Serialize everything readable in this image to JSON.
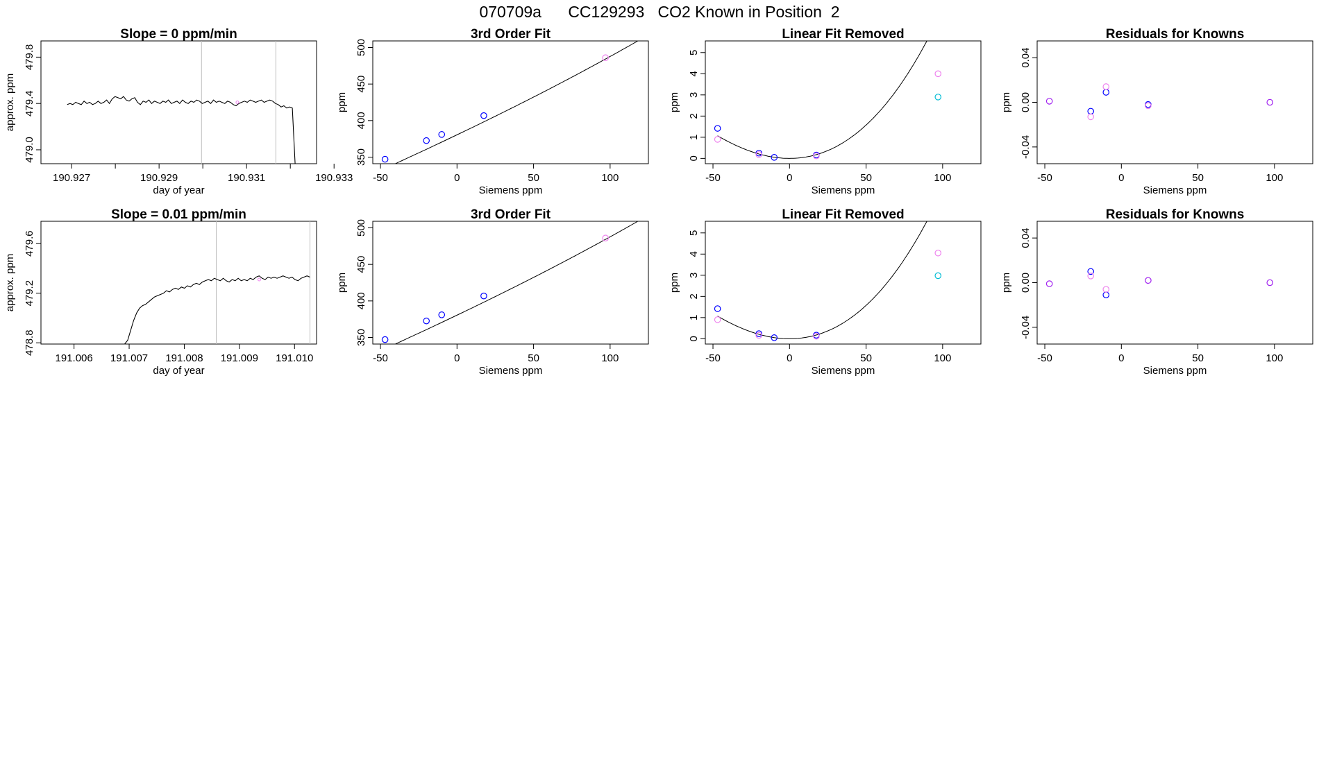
{
  "page": {
    "title": "070709a      CC129293   CO2 Known in Position  2"
  },
  "colors": {
    "line": "#000000",
    "frame": "#000000",
    "vline": "#bebebe",
    "blue": "#0000ff",
    "magenta": "#ee82ee",
    "cyan": "#00bcd4",
    "purple": "#a020f0"
  },
  "chart_data": [
    {
      "type": "line",
      "row": 1,
      "col": 1,
      "title": "Slope =  0  ppm/min",
      "xlabel": "day of year",
      "ylabel": "approx. ppm",
      "xlim": [
        190.9263,
        190.9326
      ],
      "ylim": [
        478.88,
        479.94
      ],
      "xticks": [
        190.927,
        190.928,
        190.929,
        190.93,
        190.931,
        190.932,
        190.933
      ],
      "xtick_labels": [
        "190.927",
        "",
        "190.929",
        "",
        "190.931",
        "",
        "190.933"
      ],
      "yticks": [
        479.0,
        479.4,
        479.8
      ],
      "ytick_labels": [
        "479.0",
        "479.4",
        "479.8"
      ],
      "vlines": [
        190.92997,
        190.93167
      ],
      "series": [
        {
          "name": "trace",
          "x_start": 190.9269,
          "x_end": 190.93211,
          "values": [
            479.39,
            479.4,
            479.39,
            479.41,
            479.4,
            479.39,
            479.42,
            479.4,
            479.41,
            479.39,
            479.4,
            479.42,
            479.4,
            479.41,
            479.43,
            479.4,
            479.44,
            479.46,
            479.45,
            479.44,
            479.46,
            479.43,
            479.42,
            479.44,
            479.45,
            479.41,
            479.39,
            479.42,
            479.41,
            479.43,
            479.4,
            479.42,
            479.41,
            479.4,
            479.42,
            479.41,
            479.43,
            479.4,
            479.41,
            479.42,
            479.4,
            479.43,
            479.41,
            479.4,
            479.42,
            479.41,
            479.43,
            479.42,
            479.4,
            479.41,
            479.42,
            479.4,
            479.43,
            479.41,
            479.42,
            479.41,
            479.4,
            479.42,
            479.41,
            479.39,
            479.38,
            479.4,
            479.41,
            479.42,
            479.41,
            479.43,
            479.42,
            479.41,
            479.42,
            479.43,
            479.41,
            479.42,
            479.43,
            479.42,
            479.4,
            479.39,
            479.37,
            479.38,
            479.36,
            479.37,
            479.36,
            478.88
          ]
        }
      ],
      "markers": [
        {
          "name": "light-marker",
          "x": 190.93079,
          "y": 479.41,
          "color": "magenta"
        }
      ]
    },
    {
      "type": "scatter",
      "row": 1,
      "col": 2,
      "title": "3rd Order Fit",
      "xlabel": "Siemens ppm",
      "ylabel": "ppm",
      "xlim": [
        -55,
        125
      ],
      "ylim": [
        341,
        509
      ],
      "xticks": [
        -50,
        0,
        50,
        100
      ],
      "xtick_labels": [
        "-50",
        "0",
        "50",
        "100"
      ],
      "yticks": [
        350,
        400,
        450,
        500
      ],
      "yticks_labels_note": "labels rotated",
      "ytick_labels": [
        "350",
        "400",
        "450",
        "500"
      ],
      "curve": {
        "a": 380.55,
        "b": 1.001,
        "c": 0.000555,
        "d": 1.5e-06,
        "x_from": -53.5,
        "x_to": 118
      },
      "points": [
        {
          "x": -47,
          "y": 347.1,
          "color": "blue"
        },
        {
          "x": -20,
          "y": 372.6,
          "color": "blue"
        },
        {
          "x": -10,
          "y": 381.0,
          "color": "blue"
        },
        {
          "x": 17.5,
          "y": 406.8,
          "color": "blue"
        },
        {
          "x": 97,
          "y": 486.0,
          "color": "magenta"
        }
      ]
    },
    {
      "type": "scatter",
      "row": 1,
      "col": 3,
      "title": "Linear Fit Removed",
      "xlabel": "Siemens ppm",
      "ylabel": "ppm",
      "xlim": [
        -55,
        125
      ],
      "ylim": [
        -0.25,
        5.55
      ],
      "xticks": [
        -50,
        0,
        50,
        100
      ],
      "xtick_labels": [
        "-50",
        "0",
        "50",
        "100"
      ],
      "yticks": [
        0,
        1,
        2,
        3,
        4,
        5
      ],
      "ytick_labels": [
        "0",
        "1",
        "2",
        "3",
        "4",
        "5"
      ],
      "curve": {
        "a": 0.0,
        "b": 0.0,
        "c": 0.000555,
        "d": 1.5e-06,
        "x_from": -47,
        "x_to": 118
      },
      "points": [
        {
          "x": -47,
          "y": 1.42,
          "color": "blue"
        },
        {
          "x": -47,
          "y": 0.9,
          "color": "magenta"
        },
        {
          "x": -20,
          "y": 0.25,
          "color": "blue"
        },
        {
          "x": -20,
          "y": 0.18,
          "color": "magenta"
        },
        {
          "x": -10,
          "y": 0.05,
          "color": "blue"
        },
        {
          "x": 17.5,
          "y": 0.16,
          "color": "blue"
        },
        {
          "x": 17.5,
          "y": 0.12,
          "color": "magenta"
        },
        {
          "x": 97,
          "y": 4.0,
          "color": "magenta"
        },
        {
          "x": 97,
          "y": 2.9,
          "color": "cyan"
        }
      ]
    },
    {
      "type": "scatter",
      "row": 1,
      "col": 4,
      "title": "Residuals for Knowns",
      "xlabel": "Siemens ppm",
      "ylabel": "ppm",
      "xlim": [
        -55,
        125
      ],
      "ylim": [
        -0.055,
        0.055
      ],
      "xticks": [
        -50,
        0,
        50,
        100
      ],
      "xtick_labels": [
        "-50",
        "0",
        "50",
        "100"
      ],
      "yticks": [
        -0.04,
        0.0,
        0.04
      ],
      "ytick_labels": [
        "-0.04",
        "0.00",
        "0.04"
      ],
      "points": [
        {
          "x": -47,
          "y": 0.001,
          "color": "purple"
        },
        {
          "x": -20,
          "y": -0.008,
          "color": "blue"
        },
        {
          "x": -20,
          "y": -0.013,
          "color": "magenta"
        },
        {
          "x": -10,
          "y": 0.009,
          "color": "blue"
        },
        {
          "x": -10,
          "y": 0.014,
          "color": "magenta"
        },
        {
          "x": 17.5,
          "y": -0.002,
          "color": "blue"
        },
        {
          "x": 17.5,
          "y": -0.003,
          "color": "magenta"
        },
        {
          "x": 97,
          "y": 0.0,
          "color": "purple"
        }
      ]
    },
    {
      "type": "line",
      "row": 2,
      "col": 1,
      "title": "Slope =  0.01  ppm/min",
      "xlabel": "day of year",
      "ylabel": "approx. ppm",
      "xlim": [
        191.0054,
        191.0104
      ],
      "ylim": [
        478.79,
        479.78
      ],
      "xticks": [
        191.006,
        191.007,
        191.008,
        191.009,
        191.01
      ],
      "xtick_labels": [
        "191.006",
        "191.007",
        "191.008",
        "191.009",
        "191.010"
      ],
      "yticks": [
        478.8,
        479.2,
        479.6
      ],
      "ytick_labels": [
        "478.8",
        "479.2",
        "479.6"
      ],
      "vlines": [
        191.00858,
        191.01028
      ],
      "series": [
        {
          "name": "trace",
          "x_start": 191.0054,
          "x_end": 191.01028,
          "values": [
            478.79,
            478.79,
            478.79,
            478.79,
            478.79,
            478.79,
            478.79,
            478.79,
            478.79,
            478.79,
            478.79,
            478.79,
            478.79,
            478.79,
            478.79,
            478.79,
            478.79,
            478.79,
            478.79,
            478.79,
            478.79,
            478.79,
            478.79,
            478.79,
            478.79,
            478.79,
            478.79,
            478.79,
            478.79,
            478.82,
            478.9,
            478.98,
            479.04,
            479.08,
            479.1,
            479.11,
            479.13,
            479.15,
            479.17,
            479.18,
            479.19,
            479.2,
            479.22,
            479.21,
            479.23,
            479.24,
            479.23,
            479.25,
            479.24,
            479.26,
            479.25,
            479.27,
            479.28,
            479.27,
            479.29,
            479.3,
            479.31,
            479.3,
            479.32,
            479.31,
            479.3,
            479.32,
            479.3,
            479.29,
            479.31,
            479.3,
            479.32,
            479.3,
            479.31,
            479.3,
            479.32,
            479.31,
            479.33,
            479.34,
            479.32,
            479.31,
            479.33,
            479.32,
            479.33,
            479.32,
            479.33,
            479.34,
            479.33,
            479.32,
            479.33,
            479.31,
            479.3,
            479.32,
            479.33,
            479.34,
            479.33
          ]
        }
      ],
      "markers": [
        {
          "name": "light-marker",
          "x": 191.00936,
          "y": 479.31,
          "color": "magenta"
        }
      ]
    },
    {
      "type": "scatter",
      "row": 2,
      "col": 2,
      "title": "3rd Order Fit",
      "xlabel": "Siemens ppm",
      "ylabel": "ppm",
      "xlim": [
        -55,
        125
      ],
      "ylim": [
        341,
        509
      ],
      "xticks": [
        -50,
        0,
        50,
        100
      ],
      "xtick_labels": [
        "-50",
        "0",
        "50",
        "100"
      ],
      "yticks": [
        350,
        400,
        450,
        500
      ],
      "ytick_labels": [
        "350",
        "400",
        "450",
        "500"
      ],
      "curve": {
        "a": 380.55,
        "b": 1.001,
        "c": 0.000555,
        "d": 1.5e-06,
        "x_from": -53.5,
        "x_to": 118
      },
      "points": [
        {
          "x": -47,
          "y": 347.1,
          "color": "blue"
        },
        {
          "x": -20,
          "y": 372.6,
          "color": "blue"
        },
        {
          "x": -10,
          "y": 381.0,
          "color": "blue"
        },
        {
          "x": 17.5,
          "y": 406.8,
          "color": "blue"
        },
        {
          "x": 97,
          "y": 486.0,
          "color": "magenta"
        }
      ]
    },
    {
      "type": "scatter",
      "row": 2,
      "col": 3,
      "title": "Linear Fit Removed",
      "xlabel": "Siemens ppm",
      "ylabel": "ppm",
      "xlim": [
        -55,
        125
      ],
      "ylim": [
        -0.25,
        5.55
      ],
      "xticks": [
        -50,
        0,
        50,
        100
      ],
      "xtick_labels": [
        "-50",
        "0",
        "50",
        "100"
      ],
      "yticks": [
        0,
        1,
        2,
        3,
        4,
        5
      ],
      "ytick_labels": [
        "0",
        "1",
        "2",
        "3",
        "4",
        "5"
      ],
      "curve": {
        "a": 0.0,
        "b": 0.0,
        "c": 0.000555,
        "d": 1.5e-06,
        "x_from": -47,
        "x_to": 118
      },
      "points": [
        {
          "x": -47,
          "y": 1.42,
          "color": "blue"
        },
        {
          "x": -47,
          "y": 0.9,
          "color": "magenta"
        },
        {
          "x": -20,
          "y": 0.24,
          "color": "blue"
        },
        {
          "x": -20,
          "y": 0.16,
          "color": "magenta"
        },
        {
          "x": -10,
          "y": 0.05,
          "color": "blue"
        },
        {
          "x": 17.5,
          "y": 0.17,
          "color": "blue"
        },
        {
          "x": 17.5,
          "y": 0.12,
          "color": "magenta"
        },
        {
          "x": 97,
          "y": 4.05,
          "color": "magenta"
        },
        {
          "x": 97,
          "y": 2.98,
          "color": "cyan"
        }
      ]
    },
    {
      "type": "scatter",
      "row": 2,
      "col": 4,
      "title": "Residuals for Knowns",
      "xlabel": "Siemens ppm",
      "ylabel": "ppm",
      "xlim": [
        -55,
        125
      ],
      "ylim": [
        -0.055,
        0.055
      ],
      "xticks": [
        -50,
        0,
        50,
        100
      ],
      "xtick_labels": [
        "-50",
        "0",
        "50",
        "100"
      ],
      "yticks": [
        -0.04,
        0.0,
        0.04
      ],
      "ytick_labels": [
        "-0.04",
        "0.00",
        "0.04"
      ],
      "points": [
        {
          "x": -47,
          "y": -0.001,
          "color": "purple"
        },
        {
          "x": -20,
          "y": 0.01,
          "color": "blue"
        },
        {
          "x": -20,
          "y": 0.006,
          "color": "magenta"
        },
        {
          "x": -10,
          "y": -0.011,
          "color": "blue"
        },
        {
          "x": -10,
          "y": -0.006,
          "color": "magenta"
        },
        {
          "x": 17.5,
          "y": 0.002,
          "color": "purple"
        },
        {
          "x": 97,
          "y": 0.0,
          "color": "purple"
        }
      ]
    }
  ]
}
